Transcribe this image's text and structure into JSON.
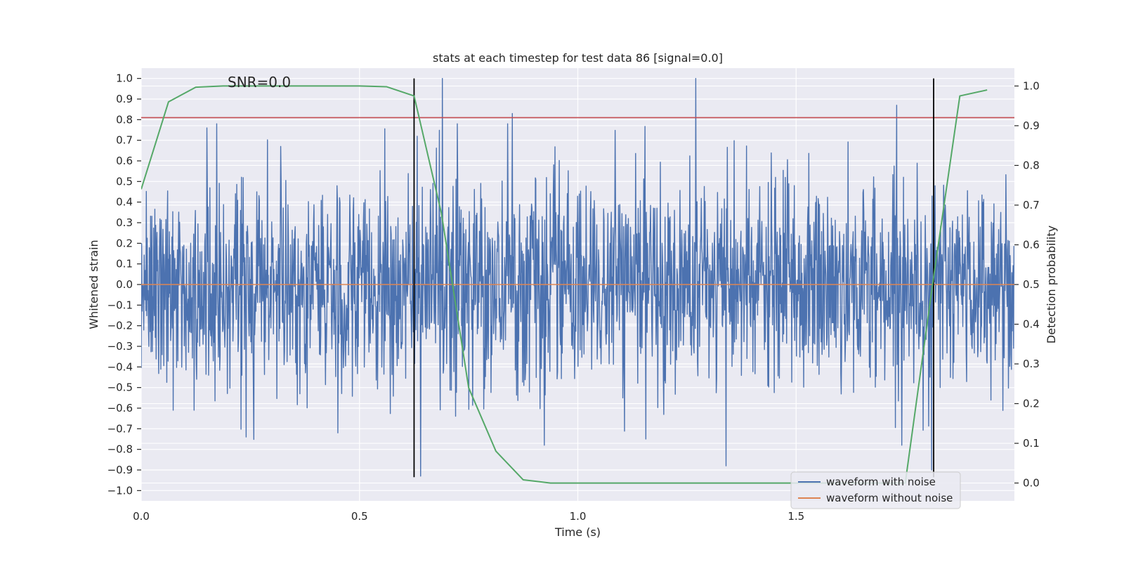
{
  "chart_data": {
    "type": "line",
    "title": "stats at each timestep for test data 86 [signal=0.0]",
    "annotation": "SNR=0.0",
    "xlabel": "Time (s)",
    "ylabel": "Whitened strain",
    "y2label": "Detection probability",
    "xlim": [
      0.0,
      2.0
    ],
    "ylim": [
      -1.05,
      1.05
    ],
    "y2lim": [
      -0.045,
      1.045
    ],
    "xticks": [
      0.0,
      0.5,
      1.0,
      1.5
    ],
    "xtick_labels": [
      "0.0",
      "0.5",
      "1.0",
      "1.5"
    ],
    "yticks": [
      1.0,
      0.9,
      0.8,
      0.7,
      0.6,
      0.5,
      0.4,
      0.3,
      0.2,
      0.1,
      0.0,
      -0.1,
      -0.2,
      -0.3,
      -0.4,
      -0.5,
      -0.6,
      -0.7,
      -0.8,
      -0.9,
      -1.0
    ],
    "ytick_labels": [
      "1.0",
      "0.9",
      "0.8",
      "0.7",
      "0.6",
      "0.5",
      "0.4",
      "0.3",
      "0.2",
      "0.1",
      "0.0",
      "−0.1",
      "−0.2",
      "−0.3",
      "−0.4",
      "−0.5",
      "−0.6",
      "−0.7",
      "−0.8",
      "−0.9",
      "−1.0"
    ],
    "y2ticks": [
      1.0,
      0.9,
      0.8,
      0.7,
      0.6,
      0.5,
      0.4,
      0.3,
      0.2,
      0.1,
      0.0
    ],
    "y2tick_labels": [
      "1.0",
      "0.9",
      "0.8",
      "0.7",
      "0.6",
      "0.5",
      "0.4",
      "0.3",
      "0.2",
      "0.1",
      "0.0"
    ],
    "legend": {
      "location": "lower-right",
      "entries": [
        {
          "label": "waveform with noise",
          "color": "#4c72b0"
        },
        {
          "label": "waveform without noise",
          "color": "#dd8452"
        }
      ]
    },
    "series": [
      {
        "name": "waveform with noise",
        "axis": "left",
        "color": "#4c72b0",
        "n_samples": 2048,
        "x_range": [
          0.0,
          2.0
        ],
        "amplitude_std": 0.25,
        "normalized_peak": 1.0,
        "peaks": [
          {
            "x": 0.69,
            "y": 1.0
          },
          {
            "x": 1.27,
            "y": 1.0
          },
          {
            "x": 1.73,
            "y": 0.87
          },
          {
            "x": 0.85,
            "y": 0.83
          },
          {
            "x": 0.15,
            "y": 0.76
          },
          {
            "x": 0.64,
            "y": -0.93
          },
          {
            "x": 1.34,
            "y": -0.88
          },
          {
            "x": 1.81,
            "y": -0.9
          },
          {
            "x": 0.24,
            "y": -0.74
          },
          {
            "x": 0.45,
            "y": -0.72
          }
        ]
      },
      {
        "name": "waveform without noise",
        "axis": "left",
        "color": "#dd8452",
        "x": [
          0.0,
          2.0
        ],
        "y": [
          0.0,
          0.0
        ]
      },
      {
        "name": "detection probability",
        "axis": "right",
        "color": "#55a868",
        "x": [
          0.0,
          0.0625,
          0.125,
          0.1875,
          0.25,
          0.3125,
          0.375,
          0.4375,
          0.5,
          0.5625,
          0.625,
          0.6875,
          0.75,
          0.8125,
          0.875,
          0.9375,
          1.0,
          1.0625,
          1.125,
          1.1875,
          1.25,
          1.3125,
          1.375,
          1.4375,
          1.5,
          1.5625,
          1.625,
          1.6875,
          1.75,
          1.8125,
          1.875,
          1.9375
        ],
        "y": [
          0.74,
          0.96,
          0.997,
          1.0,
          1.0,
          1.0,
          1.0,
          1.0,
          1.0,
          0.998,
          0.975,
          0.68,
          0.24,
          0.08,
          0.008,
          0.0,
          0.0,
          0.0,
          0.0,
          0.0,
          0.0,
          0.0,
          0.0,
          0.0,
          0.0,
          0.0,
          0.0,
          0.0,
          0.0,
          0.5,
          0.975,
          0.99
        ]
      }
    ],
    "hlines": [
      {
        "name": "detection threshold",
        "axis": "left",
        "y": 0.81,
        "color": "#c44e52"
      }
    ],
    "vlines": [
      {
        "name": "event marker 1",
        "x": 0.625,
        "y_from": -0.935,
        "y_to": 1.0,
        "color": "#000000"
      },
      {
        "name": "event marker 2",
        "x": 1.815,
        "y_from": -0.935,
        "y_to": 1.0,
        "color": "#000000"
      }
    ],
    "grid": true,
    "background_color": "#eaeaf2"
  }
}
